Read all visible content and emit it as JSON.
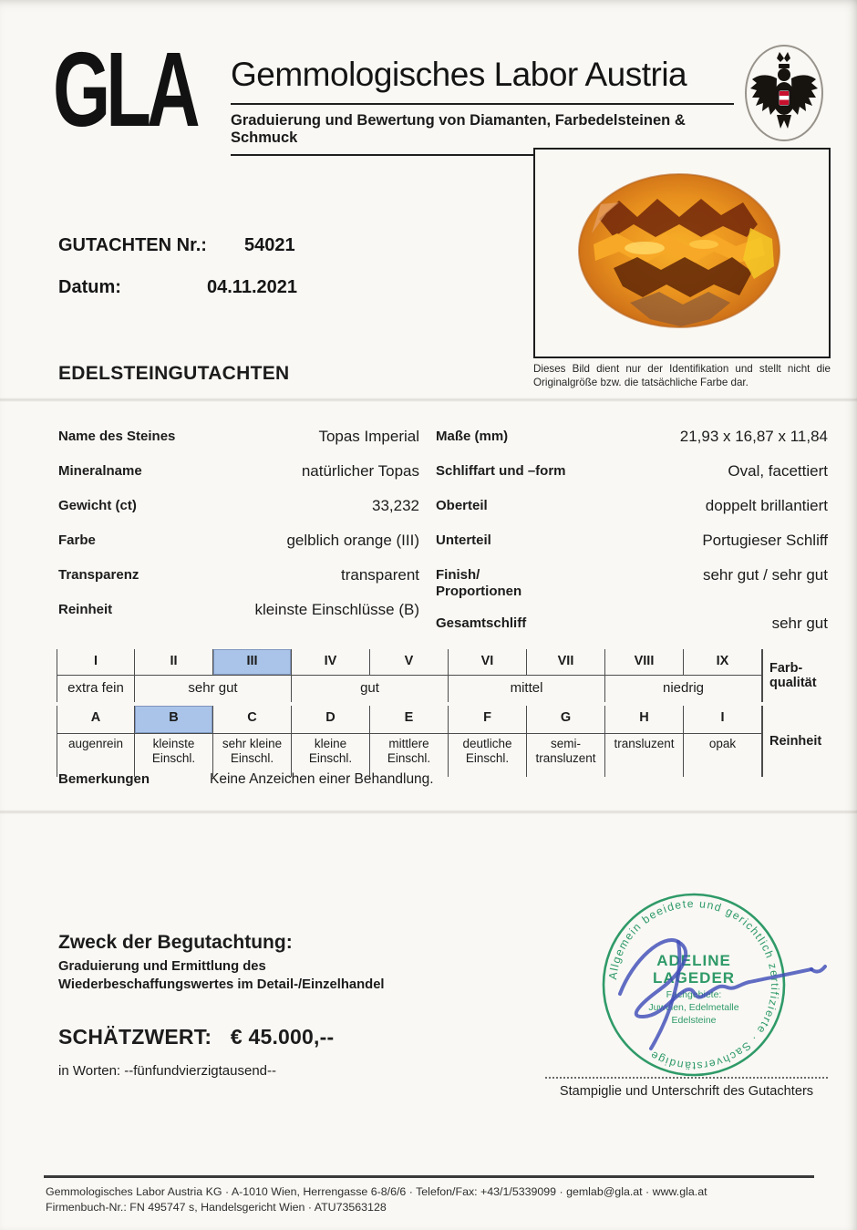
{
  "header": {
    "logo_text": "GLA",
    "title": "Gemmologisches Labor Austria",
    "subtitle": "Graduierung und Bewertung von Diamanten, Farbedelsteinen & Schmuck"
  },
  "meta": {
    "report_label": "GUTACHTEN Nr.:",
    "report_number": "54021",
    "date_label": "Datum:",
    "date_value": "04.11.2021"
  },
  "section_title": "EDELSTEINGUTACHTEN",
  "photo": {
    "caption": "Dieses Bild dient nur der Identifikation und stellt nicht die Originalgröße bzw. die tatsächliche Farbe dar."
  },
  "properties": {
    "left": [
      {
        "label": "Name des Steines",
        "value": "Topas Imperial"
      },
      {
        "label": "Mineralname",
        "value": "natürlicher Topas"
      },
      {
        "label": "Gewicht (ct)",
        "value": "33,232"
      },
      {
        "label": "Farbe",
        "value": "gelblich orange (III)"
      },
      {
        "label": "Transparenz",
        "value": "transparent"
      },
      {
        "label": "Reinheit",
        "value": "kleinste Einschlüsse (B)"
      }
    ],
    "right": [
      {
        "label": "Maße (mm)",
        "value": "21,93 x 16,87 x 11,84"
      },
      {
        "label": "Schliffart und –form",
        "value": "Oval, facettiert"
      },
      {
        "label": "Oberteil",
        "value": "doppelt brillantiert"
      },
      {
        "label": "Unterteil",
        "value": "Portugieser Schliff"
      },
      {
        "label": "Finish/",
        "label2": "Proportionen",
        "value": "sehr gut / sehr gut"
      },
      {
        "label": "Gesamtschliff",
        "value": "sehr gut"
      }
    ]
  },
  "grading": {
    "highlight_color": "#a9c4e8",
    "color": {
      "axis_label": "Farb-qualität",
      "grades": [
        "I",
        "II",
        "III",
        "IV",
        "V",
        "VI",
        "VII",
        "VIII",
        "IX"
      ],
      "selected": "III",
      "bands": [
        {
          "label": "extra fein",
          "span": 1
        },
        {
          "label": "sehr gut",
          "span": 2
        },
        {
          "label": "gut",
          "span": 2
        },
        {
          "label": "mittel",
          "span": 2
        },
        {
          "label": "niedrig",
          "span": 2
        }
      ]
    },
    "clarity": {
      "axis_label": "Reinheit",
      "grades": [
        "A",
        "B",
        "C",
        "D",
        "E",
        "F",
        "G",
        "H",
        "I"
      ],
      "selected": "B",
      "descriptions": [
        "augenrein",
        "kleinste Einschl.",
        "sehr kleine Einschl.",
        "kleine Einschl.",
        "mittlere Einschl.",
        "deutliche Einschl.",
        "semi-transluzent",
        "transluzent",
        "opak"
      ]
    }
  },
  "remarks": {
    "label": "Bemerkungen",
    "value": "Keine Anzeichen einer Behandlung."
  },
  "purpose": {
    "title": "Zweck der Begutachtung:",
    "lines": [
      "Graduierung und Ermittlung des",
      "Wiederbeschaffungswertes im Detail-/Einzelhandel"
    ]
  },
  "valuation": {
    "label": "SCHÄTZWERT:",
    "amount": "€ 45.000,--",
    "in_words": "in Worten: --fünfundvierzigtausend--"
  },
  "stamp": {
    "color": "#2f9a68",
    "signature_color": "#3f4db8",
    "ring_text": "Allgemein beeidete und gerichtlich zertifizierte · Sachverständige",
    "name": [
      "ADELINE",
      "LAGEDER"
    ],
    "fields": [
      "Fachgebiete:",
      "Juwelen, Edelmetalle",
      "Edelsteine"
    ],
    "caption": "Stampiglie und Unterschrift des Gutachters"
  },
  "footer": {
    "line1": "Gemmologisches Labor Austria KG  ·  A-1010 Wien, Herrengasse 6-8/6/6  ·  Telefon/Fax: +43/1/5339099  ·  gemlab@gla.at  ·  www.gla.at",
    "line2": "Firmenbuch-Nr.: FN 495747 s, Handelsgericht Wien  ·  ATU73563128"
  }
}
